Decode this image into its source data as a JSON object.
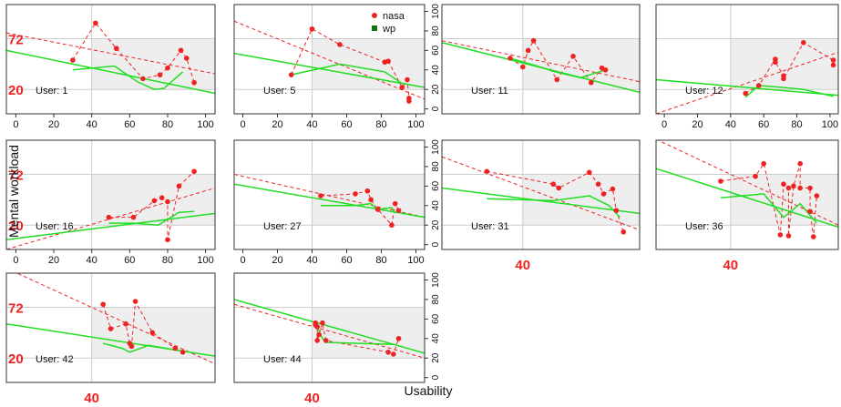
{
  "chart_data": {
    "type": "scatter",
    "title": "",
    "xlabel": "Usability",
    "ylabel": "Mental workload",
    "legend": {
      "placement": "top-right of panel 2",
      "entries": [
        {
          "name": "nasa",
          "color": "#ee2222",
          "marker": "point",
          "line": "dashed regression"
        },
        {
          "name": "wp",
          "color": "#117711",
          "marker": "square",
          "line": "solid regression"
        }
      ]
    },
    "highlight_labels": {
      "y_values": [
        "72",
        "20"
      ],
      "x_value": "40",
      "color": "#ee2222"
    },
    "axis": {
      "xlim": [
        -5,
        105
      ],
      "ylim": [
        -5,
        107
      ],
      "x_ticks": [
        "0",
        "20",
        "40",
        "60",
        "80",
        "100"
      ],
      "y_ticks": [
        "0",
        "20",
        "40",
        "60",
        "80",
        "100"
      ]
    },
    "reference_lines": {
      "x": 40,
      "y_low": 20,
      "y_high": 72
    },
    "colors": {
      "nasa": "#ee2222",
      "wp": "#22dd22",
      "shade": "#eeeeee",
      "grid": "#cccccc"
    },
    "panels": [
      {
        "user": "User: 1",
        "nasa_points": [
          [
            30,
            50
          ],
          [
            42,
            88
          ],
          [
            53,
            62
          ],
          [
            67,
            31
          ],
          [
            76,
            35
          ],
          [
            80,
            42
          ],
          [
            87,
            60
          ],
          [
            90,
            52
          ],
          [
            94,
            27
          ]
        ],
        "nasa_trend": [
          [
            -5,
            78
          ],
          [
            105,
            36
          ]
        ],
        "wp_trend": [
          [
            -5,
            60
          ],
          [
            105,
            16
          ]
        ],
        "wp_path": [
          [
            30,
            40
          ],
          [
            52,
            44
          ],
          [
            64,
            28
          ],
          [
            73,
            20
          ],
          [
            78,
            21
          ],
          [
            88,
            38
          ]
        ]
      },
      {
        "user": "User: 5",
        "nasa_points": [
          [
            28,
            35
          ],
          [
            40,
            82
          ],
          [
            56,
            66
          ],
          [
            82,
            48
          ],
          [
            84,
            49
          ],
          [
            92,
            22
          ],
          [
            95,
            30
          ],
          [
            96,
            11
          ],
          [
            96,
            8
          ]
        ],
        "nasa_trend": [
          [
            -5,
            90
          ],
          [
            105,
            10
          ]
        ],
        "wp_trend": [
          [
            -5,
            57
          ],
          [
            105,
            22
          ]
        ],
        "wp_path": [
          [
            28,
            35
          ],
          [
            56,
            46
          ],
          [
            82,
            38
          ],
          [
            92,
            26
          ]
        ]
      },
      {
        "user": "User: 11",
        "nasa_points": [
          [
            33,
            52
          ],
          [
            40,
            43
          ],
          [
            43,
            60
          ],
          [
            46,
            70
          ],
          [
            59,
            30
          ],
          [
            68,
            54
          ],
          [
            78,
            27
          ],
          [
            84,
            42
          ],
          [
            86,
            40
          ]
        ],
        "nasa_trend": [
          [
            -5,
            70
          ],
          [
            105,
            28
          ]
        ],
        "wp_trend": [
          [
            -5,
            68
          ],
          [
            105,
            17
          ]
        ],
        "wp_path": [
          [
            33,
            52
          ],
          [
            48,
            44
          ],
          [
            58,
            38
          ],
          [
            72,
            32
          ],
          [
            86,
            40
          ]
        ]
      },
      {
        "user": "User: 12",
        "nasa_points": [
          [
            49,
            16
          ],
          [
            57,
            24
          ],
          [
            67,
            51
          ],
          [
            67,
            48
          ],
          [
            72,
            34
          ],
          [
            72,
            31
          ],
          [
            84,
            68
          ],
          [
            102,
            50
          ],
          [
            102,
            45
          ]
        ],
        "nasa_trend": [
          [
            -5,
            -5
          ],
          [
            105,
            58
          ]
        ],
        "wp_trend": [
          [
            -5,
            30
          ],
          [
            105,
            14
          ]
        ],
        "wp_path": [
          [
            49,
            12
          ],
          [
            57,
            24
          ],
          [
            72,
            22
          ],
          [
            84,
            20
          ],
          [
            102,
            13
          ]
        ]
      },
      {
        "user": "User: 16",
        "nasa_points": [
          [
            49,
            28
          ],
          [
            62,
            28
          ],
          [
            73,
            45
          ],
          [
            77,
            48
          ],
          [
            80,
            44
          ],
          [
            80,
            5
          ],
          [
            86,
            60
          ],
          [
            94,
            75
          ]
        ],
        "nasa_trend": [
          [
            -5,
            -5
          ],
          [
            105,
            58
          ]
        ],
        "wp_trend": [
          [
            -5,
            5
          ],
          [
            105,
            32
          ]
        ],
        "wp_path": [
          [
            49,
            22
          ],
          [
            62,
            22
          ],
          [
            75,
            20
          ],
          [
            86,
            33
          ],
          [
            94,
            34
          ]
        ]
      },
      {
        "user": "User: 27",
        "nasa_points": [
          [
            45,
            50
          ],
          [
            65,
            52
          ],
          [
            72,
            55
          ],
          [
            74,
            46
          ],
          [
            78,
            36
          ],
          [
            86,
            20
          ],
          [
            88,
            42
          ],
          [
            90,
            35
          ]
        ],
        "nasa_trend": [
          [
            -5,
            72
          ],
          [
            105,
            28
          ]
        ],
        "wp_trend": [
          [
            -5,
            62
          ],
          [
            105,
            28
          ]
        ],
        "wp_path": [
          [
            45,
            40
          ],
          [
            65,
            40
          ],
          [
            74,
            42
          ],
          [
            78,
            36
          ],
          [
            86,
            38
          ],
          [
            88,
            32
          ]
        ]
      },
      {
        "user": "User: 31",
        "nasa_points": [
          [
            20,
            75
          ],
          [
            57,
            62
          ],
          [
            60,
            58
          ],
          [
            77,
            74
          ],
          [
            82,
            62
          ],
          [
            85,
            52
          ],
          [
            90,
            57
          ],
          [
            92,
            35
          ],
          [
            96,
            13
          ]
        ],
        "nasa_trend": [
          [
            -5,
            90
          ],
          [
            105,
            15
          ]
        ],
        "wp_trend": [
          [
            -5,
            58
          ],
          [
            105,
            32
          ]
        ],
        "wp_path": [
          [
            20,
            47
          ],
          [
            57,
            45
          ],
          [
            77,
            50
          ],
          [
            88,
            40
          ],
          [
            94,
            28
          ]
        ]
      },
      {
        "user": "User: 36",
        "nasa_points": [
          [
            34,
            65
          ],
          [
            55,
            70
          ],
          [
            60,
            83
          ],
          [
            72,
            62
          ],
          [
            75,
            58
          ],
          [
            78,
            60
          ],
          [
            82,
            83
          ],
          [
            82,
            58
          ],
          [
            88,
            58
          ],
          [
            88,
            34
          ],
          [
            92,
            50
          ],
          [
            70,
            10
          ],
          [
            75,
            9
          ],
          [
            90,
            8
          ]
        ],
        "nasa_trend": [
          [
            -5,
            108
          ],
          [
            105,
            20
          ]
        ],
        "wp_trend": [
          [
            -5,
            78
          ],
          [
            105,
            18
          ]
        ],
        "wp_path": [
          [
            34,
            48
          ],
          [
            60,
            52
          ],
          [
            72,
            28
          ],
          [
            82,
            42
          ],
          [
            92,
            22
          ]
        ]
      },
      {
        "user": "User: 42",
        "nasa_points": [
          [
            46,
            75
          ],
          [
            50,
            50
          ],
          [
            58,
            55
          ],
          [
            60,
            35
          ],
          [
            61,
            32
          ],
          [
            63,
            78
          ],
          [
            72,
            46
          ],
          [
            84,
            30
          ],
          [
            88,
            26
          ]
        ],
        "nasa_trend": [
          [
            -5,
            112
          ],
          [
            105,
            14
          ]
        ],
        "wp_trend": [
          [
            -5,
            55
          ],
          [
            105,
            22
          ]
        ],
        "wp_path": [
          [
            46,
            35
          ],
          [
            56,
            30
          ],
          [
            60,
            26
          ],
          [
            70,
            33
          ],
          [
            88,
            27
          ]
        ]
      },
      {
        "user": "User: 44",
        "nasa_points": [
          [
            42,
            56
          ],
          [
            42,
            54
          ],
          [
            43,
            52
          ],
          [
            43,
            38
          ],
          [
            44,
            44
          ],
          [
            46,
            56
          ],
          [
            48,
            38
          ],
          [
            84,
            26
          ],
          [
            87,
            24
          ],
          [
            90,
            40
          ]
        ],
        "nasa_trend": [
          [
            -5,
            75
          ],
          [
            105,
            20
          ]
        ],
        "wp_trend": [
          [
            -5,
            80
          ],
          [
            105,
            25
          ]
        ],
        "wp_path": [
          [
            43,
            52
          ],
          [
            44,
            48
          ],
          [
            46,
            40
          ],
          [
            48,
            36
          ],
          [
            88,
            34
          ]
        ]
      }
    ]
  }
}
